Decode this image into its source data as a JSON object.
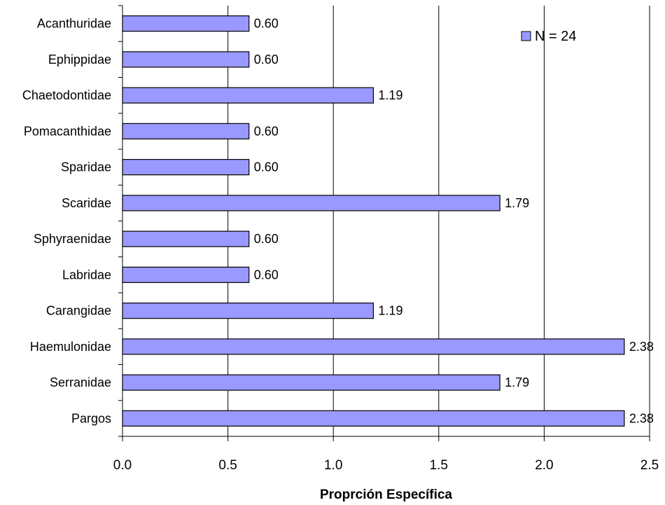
{
  "chart_data": {
    "type": "bar",
    "orientation": "horizontal",
    "categories": [
      "Acanthuridae",
      "Ephippidae",
      "Chaetodontidae",
      "Pomacanthidae",
      "Sparidae",
      "Scaridae",
      "Sphyraenidae",
      "Labridae",
      "Carangidae",
      "Haemulonidae",
      "Serranidae",
      "Pargos"
    ],
    "series": [
      {
        "name": "N = 24",
        "values": [
          0.6,
          0.6,
          1.19,
          0.6,
          0.6,
          1.79,
          0.6,
          0.6,
          1.19,
          2.38,
          1.79,
          2.38
        ],
        "value_labels": [
          "0.60",
          "0.60",
          "1.19",
          "0.60",
          "0.60",
          "1.79",
          "0.60",
          "0.60",
          "1.19",
          "2.38",
          "1.79",
          "2.38"
        ]
      }
    ],
    "title": "",
    "xlabel": "Proprción Específica",
    "ylabel": "",
    "xlim": [
      0.0,
      2.5
    ],
    "xticks": [
      "0.0",
      "0.5",
      "1.0",
      "1.5",
      "2.0",
      "2.5"
    ],
    "grid": "vertical major gridlines",
    "legend_position": "top-right",
    "colors": {
      "bar_fill": "#9999ff",
      "bar_stroke": "#000000",
      "gridline": "#000000"
    }
  }
}
